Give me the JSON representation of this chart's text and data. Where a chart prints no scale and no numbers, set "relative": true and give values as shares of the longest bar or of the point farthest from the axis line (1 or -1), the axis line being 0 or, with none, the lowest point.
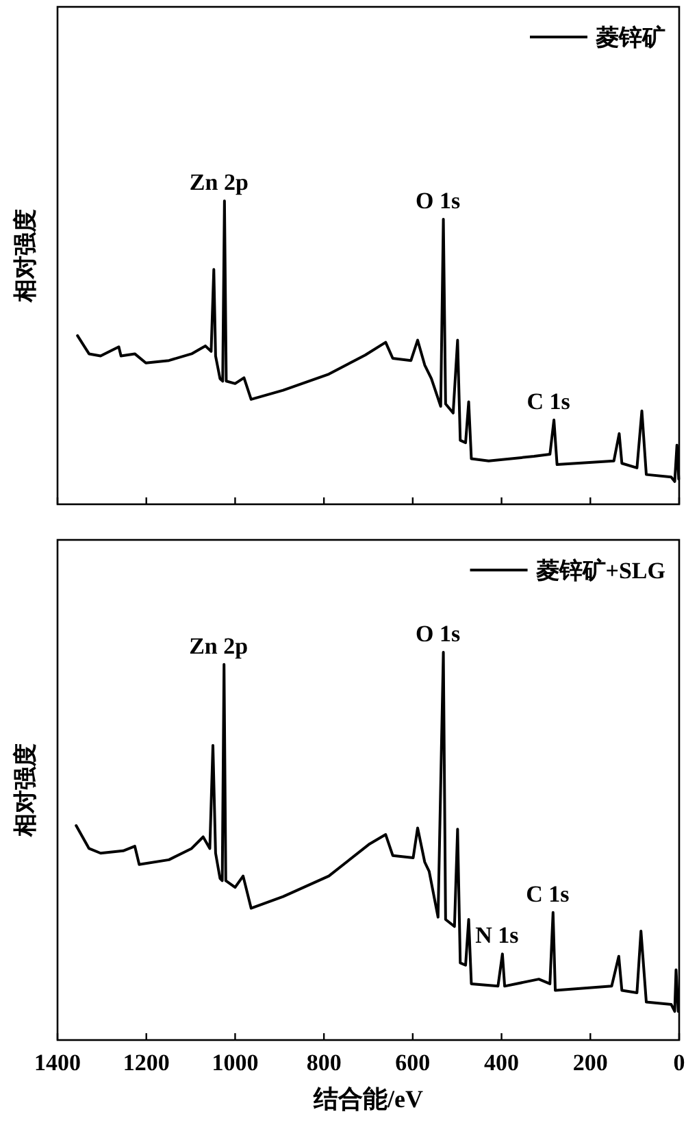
{
  "chart_data": [
    {
      "type": "line",
      "relative": true,
      "ylabel": "相对强度",
      "xlim": [
        1400,
        0
      ],
      "xticks": [
        1400,
        1200,
        1000,
        800,
        600,
        400,
        200,
        0
      ],
      "tick_labels": false,
      "legend": "top right",
      "series": [
        {
          "name": "菱锌矿",
          "color": "#000000",
          "x": [
            1355,
            1329,
            1303,
            1262,
            1257,
            1226,
            1201,
            1149,
            1098,
            1067,
            1054,
            1048,
            1044,
            1034,
            1028,
            1024,
            1020,
            1000,
            980,
            964,
            892,
            789,
            707,
            661,
            645,
            604,
            589,
            573,
            558,
            537,
            531,
            526,
            509,
            499,
            493,
            481,
            474,
            468,
            429,
            327,
            291,
            282,
            275,
            147,
            135,
            129,
            95,
            84,
            74,
            18,
            10,
            5,
            1
          ],
          "values": [
            0.556,
            0.496,
            0.489,
            0.519,
            0.489,
            0.496,
            0.466,
            0.474,
            0.496,
            0.522,
            0.504,
            0.774,
            0.489,
            0.414,
            0.406,
            1.0,
            0.406,
            0.398,
            0.417,
            0.346,
            0.376,
            0.429,
            0.492,
            0.534,
            0.481,
            0.474,
            0.541,
            0.459,
            0.414,
            0.323,
            0.94,
            0.331,
            0.301,
            0.541,
            0.211,
            0.203,
            0.338,
            0.15,
            0.143,
            0.158,
            0.165,
            0.278,
            0.131,
            0.143,
            0.233,
            0.135,
            0.12,
            0.308,
            0.098,
            0.09,
            0.075,
            0.195,
            0.083
          ]
        }
      ],
      "annotations": [
        {
          "text": "Zn 2p",
          "x": 1024,
          "y": 1.0
        },
        {
          "text": "O 1s",
          "x": 531,
          "y": 0.94
        },
        {
          "text": "C 1s",
          "x": 282,
          "y": 0.278
        }
      ]
    },
    {
      "type": "line",
      "relative": true,
      "ylabel": "相对强度",
      "xlabel": "结合能/eV",
      "xlim": [
        1400,
        0
      ],
      "xticks": [
        1400,
        1200,
        1000,
        800,
        600,
        400,
        200,
        0
      ],
      "legend": "top right",
      "series": [
        {
          "name": "菱锌矿+SLG",
          "color": "#000000",
          "x": [
            1358,
            1329,
            1303,
            1252,
            1226,
            1216,
            1149,
            1098,
            1072,
            1057,
            1050,
            1044,
            1034,
            1029,
            1025,
            1021,
            1000,
            982,
            964,
            892,
            789,
            697,
            661,
            645,
            599,
            589,
            573,
            563,
            543,
            531,
            526,
            506,
            499,
            493,
            481,
            474,
            468,
            408,
            398,
            393,
            316,
            291,
            284,
            279,
            152,
            136,
            129,
            95,
            86,
            74,
            18,
            10,
            7,
            2
          ],
          "values": [
            0.553,
            0.494,
            0.482,
            0.488,
            0.5,
            0.453,
            0.465,
            0.494,
            0.524,
            0.494,
            0.76,
            0.482,
            0.417,
            0.411,
            0.969,
            0.411,
            0.394,
            0.423,
            0.34,
            0.37,
            0.423,
            0.506,
            0.53,
            0.476,
            0.47,
            0.547,
            0.459,
            0.435,
            0.317,
            1.0,
            0.311,
            0.293,
            0.544,
            0.199,
            0.193,
            0.311,
            0.145,
            0.139,
            0.222,
            0.139,
            0.157,
            0.145,
            0.329,
            0.128,
            0.139,
            0.216,
            0.128,
            0.122,
            0.281,
            0.098,
            0.092,
            0.074,
            0.181,
            0.074
          ]
        }
      ],
      "annotations": [
        {
          "text": "Zn 2p",
          "x": 1025,
          "y": 0.969
        },
        {
          "text": "O 1s",
          "x": 531,
          "y": 1.0
        },
        {
          "text": "N 1s",
          "x": 398,
          "y": 0.222
        },
        {
          "text": "C 1s",
          "x": 284,
          "y": 0.329
        }
      ]
    }
  ]
}
